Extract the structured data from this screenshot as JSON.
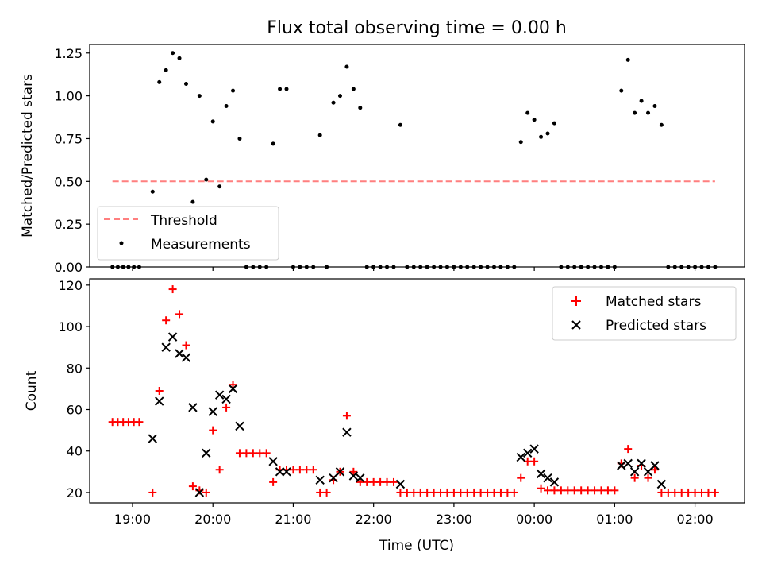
{
  "chart_data": [
    {
      "type": "scatter",
      "title": "Flux total observing time = 0.00 h",
      "xlabel": "",
      "ylabel": "Matched/Predicted stars",
      "xlim": [
        "18:28",
        "02:37"
      ],
      "ylim": [
        0,
        1.3
      ],
      "xticks": [
        "19:00",
        "20:00",
        "21:00",
        "22:00",
        "23:00",
        "00:00",
        "01:00",
        "02:00"
      ],
      "yticks": [
        "0.00",
        "0.25",
        "0.50",
        "0.75",
        "1.00",
        "1.25"
      ],
      "legend": {
        "placement": "bottom-left",
        "entries": [
          "Threshold",
          "Measurements"
        ]
      },
      "threshold": {
        "name": "Threshold",
        "value": 0.5,
        "x_start": "18:45",
        "x_end": "02:15",
        "color": "#ff7f7f"
      },
      "series": [
        {
          "name": "Measurements",
          "color": "#000000",
          "points": [
            [
              "18:45",
              0
            ],
            [
              "18:49",
              0
            ],
            [
              "18:53",
              0
            ],
            [
              "18:57",
              0
            ],
            [
              "19:01",
              0
            ],
            [
              "19:05",
              0
            ],
            [
              "19:15",
              0.44
            ],
            [
              "19:20",
              1.08
            ],
            [
              "19:25",
              1.15
            ],
            [
              "19:30",
              1.25
            ],
            [
              "19:35",
              1.22
            ],
            [
              "19:40",
              1.07
            ],
            [
              "19:45",
              0.38
            ],
            [
              "19:50",
              1.0
            ],
            [
              "19:55",
              0.51
            ],
            [
              "20:00",
              0.85
            ],
            [
              "20:05",
              0.47
            ],
            [
              "20:10",
              0.94
            ],
            [
              "20:15",
              1.03
            ],
            [
              "20:20",
              0.75
            ],
            [
              "20:25",
              0
            ],
            [
              "20:30",
              0
            ],
            [
              "20:35",
              0
            ],
            [
              "20:40",
              0
            ],
            [
              "20:45",
              0.72
            ],
            [
              "20:50",
              1.04
            ],
            [
              "20:55",
              1.04
            ],
            [
              "21:00",
              0
            ],
            [
              "21:05",
              0
            ],
            [
              "21:10",
              0
            ],
            [
              "21:15",
              0
            ],
            [
              "21:20",
              0.77
            ],
            [
              "21:25",
              0
            ],
            [
              "21:30",
              0.96
            ],
            [
              "21:35",
              1.0
            ],
            [
              "21:40",
              1.17
            ],
            [
              "21:45",
              1.04
            ],
            [
              "21:50",
              0.93
            ],
            [
              "21:55",
              0
            ],
            [
              "22:00",
              0
            ],
            [
              "22:05",
              0
            ],
            [
              "22:10",
              0
            ],
            [
              "22:15",
              0
            ],
            [
              "22:20",
              0.83
            ],
            [
              "22:25",
              0
            ],
            [
              "22:30",
              0
            ],
            [
              "22:35",
              0
            ],
            [
              "22:40",
              0
            ],
            [
              "22:45",
              0
            ],
            [
              "22:50",
              0
            ],
            [
              "22:55",
              0
            ],
            [
              "23:00",
              0
            ],
            [
              "23:05",
              0
            ],
            [
              "23:10",
              0
            ],
            [
              "23:15",
              0
            ],
            [
              "23:20",
              0
            ],
            [
              "23:25",
              0
            ],
            [
              "23:30",
              0
            ],
            [
              "23:35",
              0
            ],
            [
              "23:40",
              0
            ],
            [
              "23:45",
              0
            ],
            [
              "23:50",
              0.73
            ],
            [
              "23:55",
              0.9
            ],
            [
              "00:00",
              0.86
            ],
            [
              "00:05",
              0.76
            ],
            [
              "00:10",
              0.78
            ],
            [
              "00:15",
              0.84
            ],
            [
              "00:20",
              0
            ],
            [
              "00:25",
              0
            ],
            [
              "00:30",
              0
            ],
            [
              "00:35",
              0
            ],
            [
              "00:40",
              0
            ],
            [
              "00:45",
              0
            ],
            [
              "00:50",
              0
            ],
            [
              "00:55",
              0
            ],
            [
              "01:00",
              0
            ],
            [
              "01:05",
              1.03
            ],
            [
              "01:10",
              1.21
            ],
            [
              "01:15",
              0.9
            ],
            [
              "01:20",
              0.97
            ],
            [
              "01:25",
              0.9
            ],
            [
              "01:30",
              0.94
            ],
            [
              "01:35",
              0.83
            ],
            [
              "01:40",
              0
            ],
            [
              "01:45",
              0
            ],
            [
              "01:50",
              0
            ],
            [
              "01:55",
              0
            ],
            [
              "02:00",
              0
            ],
            [
              "02:05",
              0
            ],
            [
              "02:10",
              0
            ],
            [
              "02:15",
              0
            ]
          ]
        }
      ]
    },
    {
      "type": "scatter",
      "title": "",
      "xlabel": "Time (UTC)",
      "ylabel": "Count",
      "xlim": [
        "18:28",
        "02:37"
      ],
      "ylim": [
        15,
        123
      ],
      "xticks": [
        "19:00",
        "20:00",
        "21:00",
        "22:00",
        "23:00",
        "00:00",
        "01:00",
        "02:00"
      ],
      "yticks": [
        "20",
        "40",
        "60",
        "80",
        "100",
        "120"
      ],
      "legend": {
        "placement": "top-right",
        "entries": [
          "Matched stars",
          "Predicted stars"
        ]
      },
      "series": [
        {
          "name": "Matched stars",
          "marker": "plus",
          "color": "#ff0000",
          "points": [
            [
              "18:45",
              54
            ],
            [
              "18:49",
              54
            ],
            [
              "18:53",
              54
            ],
            [
              "18:57",
              54
            ],
            [
              "19:01",
              54
            ],
            [
              "19:05",
              54
            ],
            [
              "19:15",
              20
            ],
            [
              "19:20",
              69
            ],
            [
              "19:25",
              103
            ],
            [
              "19:30",
              118
            ],
            [
              "19:35",
              106
            ],
            [
              "19:40",
              91
            ],
            [
              "19:45",
              23
            ],
            [
              "19:50",
              21
            ],
            [
              "19:55",
              20
            ],
            [
              "20:00",
              50
            ],
            [
              "20:05",
              31
            ],
            [
              "20:10",
              61
            ],
            [
              "20:15",
              72
            ],
            [
              "20:20",
              39
            ],
            [
              "20:25",
              39
            ],
            [
              "20:30",
              39
            ],
            [
              "20:35",
              39
            ],
            [
              "20:40",
              39
            ],
            [
              "20:45",
              25
            ],
            [
              "20:50",
              31
            ],
            [
              "20:55",
              31
            ],
            [
              "21:00",
              31
            ],
            [
              "21:05",
              31
            ],
            [
              "21:10",
              31
            ],
            [
              "21:15",
              31
            ],
            [
              "21:20",
              20
            ],
            [
              "21:25",
              20
            ],
            [
              "21:30",
              26
            ],
            [
              "21:35",
              30
            ],
            [
              "21:40",
              57
            ],
            [
              "21:45",
              30
            ],
            [
              "21:50",
              25
            ],
            [
              "21:55",
              25
            ],
            [
              "22:00",
              25
            ],
            [
              "22:05",
              25
            ],
            [
              "22:10",
              25
            ],
            [
              "22:15",
              25
            ],
            [
              "22:20",
              20
            ],
            [
              "22:25",
              20
            ],
            [
              "22:30",
              20
            ],
            [
              "22:35",
              20
            ],
            [
              "22:40",
              20
            ],
            [
              "22:45",
              20
            ],
            [
              "22:50",
              20
            ],
            [
              "22:55",
              20
            ],
            [
              "23:00",
              20
            ],
            [
              "23:05",
              20
            ],
            [
              "23:10",
              20
            ],
            [
              "23:15",
              20
            ],
            [
              "23:20",
              20
            ],
            [
              "23:25",
              20
            ],
            [
              "23:30",
              20
            ],
            [
              "23:35",
              20
            ],
            [
              "23:40",
              20
            ],
            [
              "23:45",
              20
            ],
            [
              "23:50",
              27
            ],
            [
              "23:55",
              35
            ],
            [
              "00:00",
              35
            ],
            [
              "00:05",
              22
            ],
            [
              "00:10",
              21
            ],
            [
              "00:15",
              21
            ],
            [
              "00:20",
              21
            ],
            [
              "00:25",
              21
            ],
            [
              "00:30",
              21
            ],
            [
              "00:35",
              21
            ],
            [
              "00:40",
              21
            ],
            [
              "00:45",
              21
            ],
            [
              "00:50",
              21
            ],
            [
              "00:55",
              21
            ],
            [
              "01:00",
              21
            ],
            [
              "01:05",
              34
            ],
            [
              "01:10",
              41
            ],
            [
              "01:15",
              27
            ],
            [
              "01:20",
              33
            ],
            [
              "01:25",
              27
            ],
            [
              "01:30",
              31
            ],
            [
              "01:35",
              20
            ],
            [
              "01:40",
              20
            ],
            [
              "01:45",
              20
            ],
            [
              "01:50",
              20
            ],
            [
              "01:55",
              20
            ],
            [
              "02:00",
              20
            ],
            [
              "02:05",
              20
            ],
            [
              "02:10",
              20
            ],
            [
              "02:15",
              20
            ]
          ]
        },
        {
          "name": "Predicted stars",
          "marker": "x",
          "color": "#000000",
          "points": [
            [
              "19:15",
              46
            ],
            [
              "19:20",
              64
            ],
            [
              "19:25",
              90
            ],
            [
              "19:30",
              95
            ],
            [
              "19:35",
              87
            ],
            [
              "19:40",
              85
            ],
            [
              "19:45",
              61
            ],
            [
              "19:50",
              20
            ],
            [
              "19:55",
              39
            ],
            [
              "20:00",
              59
            ],
            [
              "20:05",
              67
            ],
            [
              "20:10",
              65
            ],
            [
              "20:15",
              70
            ],
            [
              "20:20",
              52
            ],
            [
              "20:45",
              35
            ],
            [
              "20:50",
              30
            ],
            [
              "20:55",
              30
            ],
            [
              "21:20",
              26
            ],
            [
              "21:30",
              27
            ],
            [
              "21:35",
              30
            ],
            [
              "21:40",
              49
            ],
            [
              "21:45",
              28
            ],
            [
              "21:50",
              27
            ],
            [
              "22:20",
              24
            ],
            [
              "23:50",
              37
            ],
            [
              "23:55",
              39
            ],
            [
              "00:00",
              41
            ],
            [
              "00:05",
              29
            ],
            [
              "00:10",
              27
            ],
            [
              "00:15",
              25
            ],
            [
              "01:05",
              33
            ],
            [
              "01:10",
              34
            ],
            [
              "01:15",
              30
            ],
            [
              "01:20",
              34
            ],
            [
              "01:25",
              30
            ],
            [
              "01:30",
              33
            ],
            [
              "01:35",
              24
            ]
          ]
        }
      ]
    }
  ]
}
